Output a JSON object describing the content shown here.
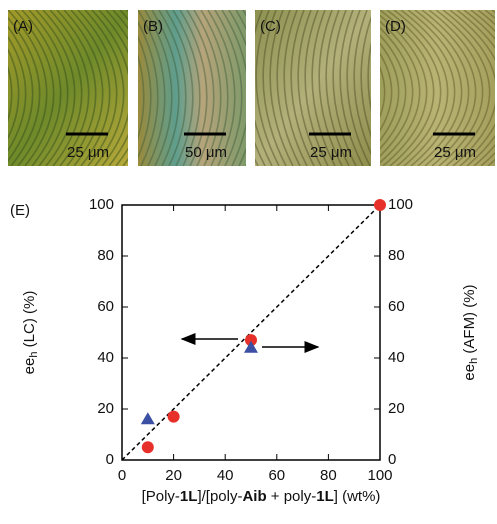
{
  "panels": [
    {
      "label": "(A)",
      "scale_bar": "25 μm"
    },
    {
      "label": "(B)",
      "scale_bar": "50 μm"
    },
    {
      "label": "(C)",
      "scale_bar": "25 μm"
    },
    {
      "label": "(D)",
      "scale_bar": "25 μm"
    }
  ],
  "chart_label": "(E)",
  "chart_data": {
    "type": "scatter",
    "xlabel": [
      {
        "text": "[Poly-",
        "bold": false
      },
      {
        "text": "1L",
        "bold": true
      },
      {
        "text": "]/[poly-",
        "bold": false
      },
      {
        "text": "Aib",
        "bold": true
      },
      {
        "text": " + poly-",
        "bold": false
      },
      {
        "text": "1L",
        "bold": true
      },
      {
        "text": "] (wt%)",
        "bold": false
      }
    ],
    "ylabel": [
      {
        "text": "ee",
        "sub": false
      },
      {
        "text": "h",
        "sub": true
      },
      {
        "text": " (LC) (%)",
        "sub": false
      }
    ],
    "y2label": [
      {
        "text": "ee",
        "sub": false
      },
      {
        "text": "h",
        "sub": true
      },
      {
        "text": " (AFM) (%)",
        "sub": false
      }
    ],
    "xlim": [
      0,
      100
    ],
    "xticks": [
      0,
      20,
      40,
      60,
      80,
      100
    ],
    "ylim": [
      0,
      100
    ],
    "yticks": [
      0,
      20,
      40,
      60,
      80,
      100
    ],
    "y2lim": [
      0,
      100
    ],
    "y2ticks": [
      0,
      20,
      40,
      60,
      80,
      100
    ],
    "series": [
      {
        "color": "#e8302a",
        "marker": "circle",
        "x": [
          10,
          20,
          50,
          100
        ],
        "values": [
          5,
          17,
          47,
          100
        ]
      },
      {
        "color": "#3b4fa3",
        "marker": "triangle",
        "axis": "y2",
        "x": [
          10,
          50
        ],
        "values": [
          16,
          44
        ]
      }
    ]
  }
}
